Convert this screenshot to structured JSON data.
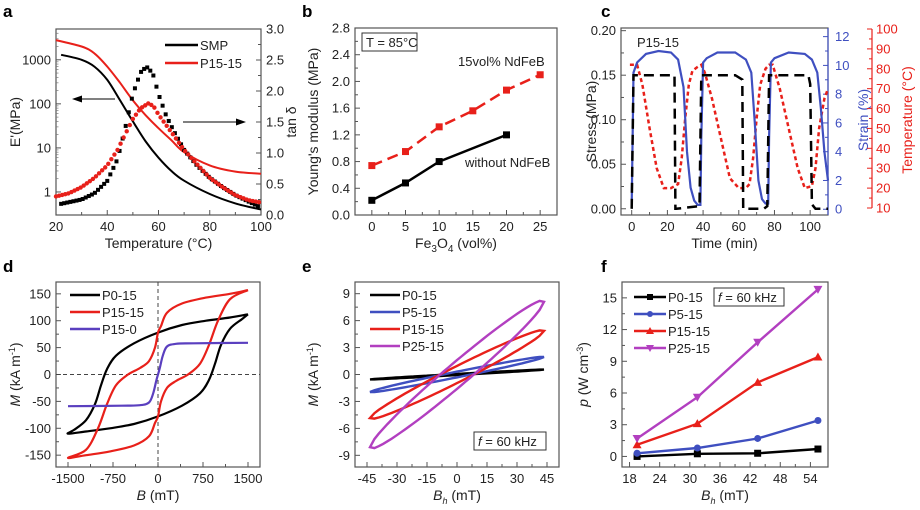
{
  "chart_data": [
    {
      "panel": "a",
      "type": "line",
      "xlabel": "Temperature (°C)",
      "ylabel": "E'(MPa)",
      "ylabel_right": "tan δ",
      "xlim": [
        20,
        100
      ],
      "ylim_log": [
        0.3,
        5000
      ],
      "ylim_right": [
        0,
        3.0
      ],
      "xticks": [
        "20",
        "40",
        "60",
        "80",
        "100"
      ],
      "yticks": [
        "1",
        "10",
        "100",
        "1000"
      ],
      "yticks_right": [
        "0.0",
        "0.5",
        "1.0",
        "1.5",
        "2.0",
        "2.5",
        "3.0"
      ],
      "legend": [
        "SMP",
        "P15-15"
      ],
      "legend_position": "top-right",
      "annotations": [
        "left arrow → E' axis",
        "right arrow → tan δ axis"
      ],
      "series": [
        {
          "name": "SMP",
          "kind": "E'",
          "color": "#000000",
          "x": [
            22,
            30,
            35,
            40,
            45,
            50,
            55,
            60,
            65,
            70,
            80,
            90,
            100
          ],
          "y": [
            1300,
            1000,
            700,
            350,
            120,
            40,
            14,
            6,
            3,
            1.8,
            0.9,
            0.55,
            0.4
          ]
        },
        {
          "name": "P15-15",
          "kind": "E'",
          "color": "#e8201a",
          "x": [
            20,
            30,
            35,
            40,
            45,
            50,
            55,
            60,
            65,
            70,
            80,
            90,
            100
          ],
          "y": [
            2800,
            2000,
            1400,
            700,
            300,
            120,
            55,
            28,
            15,
            8,
            4,
            2.9,
            2.6
          ]
        },
        {
          "name": "SMP",
          "kind": "tan δ",
          "color": "#000000",
          "x": [
            22,
            30,
            35,
            40,
            44,
            47,
            50,
            53,
            55,
            56,
            58,
            60,
            63,
            66,
            70,
            75,
            80,
            85,
            90,
            95,
            100
          ],
          "y": [
            0.18,
            0.25,
            0.35,
            0.55,
            0.9,
            1.4,
            1.95,
            2.3,
            2.38,
            2.38,
            2.25,
            1.95,
            1.6,
            1.35,
            1.05,
            0.8,
            0.6,
            0.45,
            0.32,
            0.22,
            0.12
          ]
        },
        {
          "name": "P15-15",
          "kind": "tan δ",
          "color": "#e8201a",
          "x": [
            20,
            25,
            30,
            35,
            40,
            44,
            47,
            50,
            53,
            56,
            58,
            60,
            63,
            66,
            70,
            75,
            80,
            85,
            90,
            95,
            100
          ],
          "y": [
            0.3,
            0.35,
            0.45,
            0.6,
            0.8,
            1.05,
            1.3,
            1.55,
            1.72,
            1.8,
            1.76,
            1.62,
            1.45,
            1.28,
            1.05,
            0.82,
            0.6,
            0.45,
            0.32,
            0.24,
            0.2
          ]
        }
      ]
    },
    {
      "panel": "b",
      "type": "line",
      "xlabel": "Fe3O4 (vol%)",
      "ylabel": "Young's modulus (MPa)",
      "xlim": [
        -2.5,
        27.5
      ],
      "ylim": [
        0,
        2.8
      ],
      "xticks": [
        "0",
        "5",
        "10",
        "15",
        "20",
        "25"
      ],
      "yticks": [
        "0.0",
        "0.4",
        "0.8",
        "1.2",
        "1.6",
        "2.0",
        "2.4",
        "2.8"
      ],
      "annotations": [
        "T = 85°C",
        "15vol% NdFeB",
        "without NdFeB"
      ],
      "series": [
        {
          "name": "15vol% NdFeB",
          "color": "#e8201a",
          "dashed": true,
          "x": [
            0,
            5,
            10,
            15,
            20,
            25
          ],
          "y": [
            0.74,
            0.95,
            1.32,
            1.56,
            1.87,
            2.1
          ]
        },
        {
          "name": "without NdFeB",
          "color": "#000000",
          "dashed": false,
          "x": [
            0,
            5,
            10,
            20
          ],
          "y": [
            0.22,
            0.48,
            0.8,
            1.2
          ]
        }
      ]
    },
    {
      "panel": "c",
      "type": "line",
      "xlabel": "Time (min)",
      "ylabel": "Stress (MPa)",
      "ylabel_right1": "Strain (%)",
      "ylabel_right2": "Temperature (°C)",
      "xlim": [
        -6,
        110
      ],
      "ylim": [
        -0.007,
        0.203
      ],
      "ylim_strain": [
        -0.4,
        12.6
      ],
      "ylim_temp": [
        10,
        100
      ],
      "xticks": [
        "0",
        "20",
        "40",
        "60",
        "80",
        "100"
      ],
      "yticks": [
        "0.00",
        "0.05",
        "0.10",
        "0.15",
        "0.20"
      ],
      "yticks_strain": [
        "0",
        "2",
        "4",
        "6",
        "8",
        "10",
        "12"
      ],
      "yticks_temp": [
        "10",
        "20",
        "30",
        "40",
        "50",
        "60",
        "70",
        "80",
        "90",
        "100"
      ],
      "annotations": [
        "P15-15"
      ],
      "series": [
        {
          "name": "Stress",
          "color": "#000000",
          "style": "dashed",
          "x": [
            0,
            1,
            2,
            24,
            24.5,
            25,
            38,
            39,
            40,
            42,
            58,
            62,
            62.5,
            63,
            74,
            76,
            77,
            78,
            99,
            100,
            101,
            103,
            110
          ],
          "y": [
            0.0,
            0.15,
            0.15,
            0.15,
            0.0,
            0.0,
            0.003,
            0.15,
            0.15,
            0.15,
            0.15,
            0.145,
            0.0,
            0.0,
            0.0,
            0.003,
            0.15,
            0.15,
            0.15,
            0.14,
            0.005,
            0.0,
            0.0
          ]
        },
        {
          "name": "Strain",
          "color": "#3f4fc0",
          "style": "solid",
          "x": [
            0,
            1,
            3,
            8,
            15,
            22,
            26,
            29,
            31,
            33,
            35,
            37,
            38.5,
            39,
            40,
            42,
            48,
            58,
            64,
            67,
            69,
            71,
            73,
            75,
            76.5,
            77,
            78,
            80,
            88,
            97,
            101,
            104,
            106,
            108,
            110
          ],
          "y": [
            0.3,
            9.5,
            10.2,
            10.8,
            11.0,
            10.9,
            10.4,
            8.5,
            4,
            1.5,
            0.6,
            0.3,
            0.3,
            5,
            10.2,
            10.5,
            10.9,
            10.9,
            10.4,
            9.5,
            6,
            2,
            0.7,
            0.4,
            0.4,
            5,
            10.2,
            10.5,
            10.9,
            10.8,
            10.4,
            9.5,
            7,
            4,
            2
          ]
        },
        {
          "name": "Temperature",
          "color": "#e8201a",
          "style": "dotted",
          "x": [
            -1,
            3,
            6,
            10,
            14,
            18,
            22,
            26,
            28,
            30,
            32,
            34,
            37,
            39,
            41,
            45,
            50,
            55,
            60,
            64,
            66,
            68,
            70,
            72,
            75,
            77,
            79,
            83,
            88,
            93,
            97,
            101,
            103,
            105,
            108,
            110
          ],
          "y": [
            82,
            82,
            72,
            50,
            30,
            20,
            20,
            22,
            35,
            55,
            72,
            79,
            81,
            82,
            78,
            65,
            45,
            25,
            20,
            20,
            22,
            35,
            55,
            72,
            80,
            82,
            82,
            70,
            50,
            30,
            20,
            21,
            30,
            50,
            65,
            70
          ]
        }
      ]
    },
    {
      "panel": "d",
      "type": "line",
      "xlabel": "B (mT)",
      "ylabel": "M (kA m-1)",
      "xlim": [
        -1700,
        1700
      ],
      "ylim": [
        -172,
        172
      ],
      "xticks": [
        "-1500",
        "-750",
        "0",
        "750",
        "1500"
      ],
      "yticks": [
        "-150",
        "-100",
        "-50",
        "0",
        "50",
        "100",
        "150"
      ],
      "legend": [
        "P0-15",
        "P15-15",
        "P15-0"
      ],
      "legend_position": "top-left",
      "series": [
        {
          "name": "P0-15",
          "color": "#000000",
          "x": [
            1500,
            1200,
            800,
            400,
            0,
            -400,
            -700,
            -850,
            -950,
            -1050,
            -1200,
            -1400,
            -1500,
            -1200,
            -800,
            -400,
            0,
            400,
            700,
            850,
            950,
            1050,
            1200,
            1400,
            1500
          ],
          "y": [
            112,
            106,
            100,
            92,
            78,
            58,
            35,
            10,
            -20,
            -55,
            -85,
            -103,
            -110,
            -106,
            -100,
            -92,
            -78,
            -58,
            -35,
            -10,
            20,
            55,
            85,
            103,
            112
          ]
        },
        {
          "name": "P15-15",
          "color": "#e8201a",
          "x": [
            1500,
            1200,
            800,
            400,
            150,
            50,
            0,
            -50,
            -150,
            -300,
            -500,
            -700,
            -850,
            -1000,
            -1200,
            -1500,
            -1200,
            -800,
            -400,
            -150,
            -50,
            0,
            50,
            150,
            300,
            500,
            700,
            850,
            1000,
            1200,
            1500
          ],
          "y": [
            157,
            150,
            143,
            132,
            115,
            90,
            78,
            50,
            25,
            12,
            0,
            -20,
            -55,
            -100,
            -140,
            -155,
            -150,
            -143,
            -132,
            -115,
            -90,
            -78,
            -50,
            -25,
            -12,
            0,
            20,
            55,
            100,
            140,
            157
          ]
        },
        {
          "name": "P15-0",
          "color": "#5a3fbf",
          "x": [
            -1500,
            -600,
            -300,
            -150,
            -80,
            -30,
            0,
            30,
            80,
            150,
            300,
            600,
            1500
          ],
          "y": [
            -59,
            -58,
            -57,
            -52,
            -35,
            -12,
            0,
            12,
            35,
            52,
            57,
            58,
            59
          ]
        }
      ]
    },
    {
      "panel": "e",
      "type": "line",
      "xlabel": "Bh (mT)",
      "ylabel": "M (kA m-1)",
      "xlim": [
        -51,
        51
      ],
      "ylim": [
        -10.3,
        10.3
      ],
      "xticks": [
        "-45",
        "-30",
        "-15",
        "0",
        "15",
        "30",
        "45"
      ],
      "yticks": [
        "-9",
        "-6",
        "-3",
        "0",
        "3",
        "6",
        "9"
      ],
      "legend": [
        "P0-15",
        "P5-15",
        "P15-15",
        "P25-15"
      ],
      "legend_position": "top-left",
      "annotations": [
        "f = 60 kHz"
      ],
      "series": [
        {
          "name": "P0-15",
          "color": "#000000",
          "amplitude": 0.55,
          "loop_width": 0.04
        },
        {
          "name": "P5-15",
          "color": "#3f4fc0",
          "amplitude": 1.95,
          "loop_width": 0.2
        },
        {
          "name": "P15-15",
          "color": "#e8201a",
          "amplitude": 4.85,
          "loop_width": 0.6
        },
        {
          "name": "P25-15",
          "color": "#b23fc0",
          "amplitude": 8.1,
          "loop_width": 1.0
        }
      ]
    },
    {
      "panel": "f",
      "type": "line",
      "xlabel": "Bh (mT)",
      "ylabel": "p (W cm-3)",
      "xlim": [
        16.5,
        57.5
      ],
      "ylim": [
        -1.0,
        16.5
      ],
      "xticks": [
        "18",
        "24",
        "30",
        "36",
        "42",
        "48",
        "54"
      ],
      "yticks": [
        "0",
        "3",
        "6",
        "9",
        "12",
        "15"
      ],
      "legend": [
        "P0-15",
        "P5-15",
        "P15-15",
        "P25-15"
      ],
      "legend_position": "top-left",
      "annotations": [
        "f = 60 kHz"
      ],
      "series": [
        {
          "name": "P0-15",
          "color": "#000000",
          "marker": "square",
          "x": [
            19.5,
            31.5,
            43.5,
            55.5
          ],
          "y": [
            0.0,
            0.25,
            0.3,
            0.7
          ]
        },
        {
          "name": "P5-15",
          "color": "#3f4fc0",
          "marker": "circle",
          "x": [
            19.5,
            31.5,
            43.5,
            55.5
          ],
          "y": [
            0.3,
            0.8,
            1.7,
            3.4
          ]
        },
        {
          "name": "P15-15",
          "color": "#e8201a",
          "marker": "triangle-up",
          "x": [
            19.5,
            31.5,
            43.5,
            55.5
          ],
          "y": [
            1.1,
            3.1,
            7.0,
            9.4
          ]
        },
        {
          "name": "P25-15",
          "color": "#b23fc0",
          "marker": "triangle-down",
          "x": [
            19.5,
            31.5,
            43.5,
            55.5
          ],
          "y": [
            1.7,
            5.6,
            10.8,
            15.8
          ]
        }
      ]
    }
  ],
  "panel_labels": [
    "a",
    "b",
    "c",
    "d",
    "e",
    "f"
  ]
}
